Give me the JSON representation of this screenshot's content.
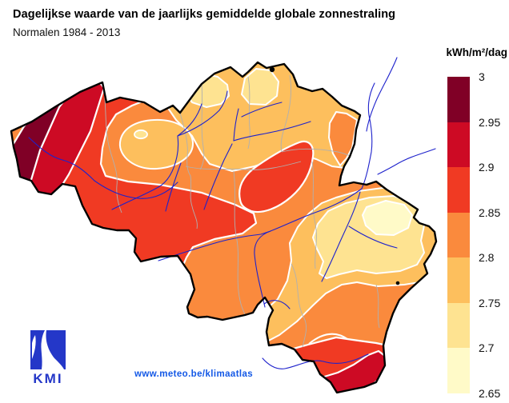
{
  "header": {
    "title": "Dagelijkse waarde van de jaarlijks gemiddelde globale zonnestraling",
    "subtitle": "Normalen 1984 - 2013"
  },
  "legend": {
    "title": "kWh/m²/dag",
    "labels": [
      "3",
      "2.95",
      "2.9",
      "2.85",
      "2.8",
      "2.75",
      "2.7",
      "2.65"
    ],
    "colors": [
      "#800026",
      "#CD0A24",
      "#F03A23",
      "#FA8A3D",
      "#FDBF5D",
      "#FEE391",
      "#FFFAC8"
    ]
  },
  "footer": {
    "logo_text": "KMI",
    "link": "www.meteo.be/klimaatlas"
  },
  "map": {
    "outline_color": "#000000",
    "contour_color": "#FFFFFF",
    "river_color": "#1E22CC",
    "province_border_color": "#B0B0B0",
    "logo_blue": "#2437C8"
  },
  "chart_data": {
    "type": "heatmap",
    "subtype": "filled contour map of Belgium",
    "title": "Dagelijkse waarde van de jaarlijks gemiddelde globale zonnestraling",
    "subtitle": "Normalen 1984 - 2013",
    "unit": "kWh/m²/dag",
    "scale": {
      "min": 2.65,
      "max": 3,
      "step": 0.05,
      "tick_labels_top_to_bottom": [
        "3",
        "2.95",
        "2.9",
        "2.85",
        "2.8",
        "2.75",
        "2.7",
        "2.65"
      ],
      "colors_high_to_low": [
        "#800026",
        "#CD0A24",
        "#F03A23",
        "#FA8A3D",
        "#FDBF5D",
        "#FEE391",
        "#FFFAC8"
      ],
      "legend_position": "right"
    },
    "regions": [
      {
        "area": "coastal strip northwest (westkust)",
        "value": "2.95–3.00"
      },
      {
        "area": "western inland band behind the coast",
        "value": "2.90–2.95"
      },
      {
        "area": "broad southwest band and tongue toward center-south",
        "value": "2.85–2.90"
      },
      {
        "area": "central belt (default background of the country)",
        "value": "2.80–2.85"
      },
      {
        "area": "northern belt across Flanders and Limburg",
        "value": "2.75–2.80"
      },
      {
        "area": "two pale patches in the northern Kempen area",
        "value": "2.70–2.75"
      },
      {
        "area": "small orange pocket at the northeast border",
        "value": "2.80–2.85"
      },
      {
        "area": "light oval pocket around Gent with tiny pale core",
        "value": "2.75–2.80 (core 2.70–2.75)"
      },
      {
        "area": "central-east red blob (Namur–Huy region)",
        "value": "2.85–2.90"
      },
      {
        "area": "eastern high plateau band (Hoge Venen surroundings)",
        "value": "2.75–2.80"
      },
      {
        "area": "eastern plateau pale zone",
        "value": "2.70–2.75"
      },
      {
        "area": "eastern plateau palest core",
        "value": "2.65–2.70"
      },
      {
        "area": "band along the far southern border",
        "value": "2.85–2.90"
      },
      {
        "area": "extreme southeast tip",
        "value": "2.90–2.95"
      }
    ]
  }
}
